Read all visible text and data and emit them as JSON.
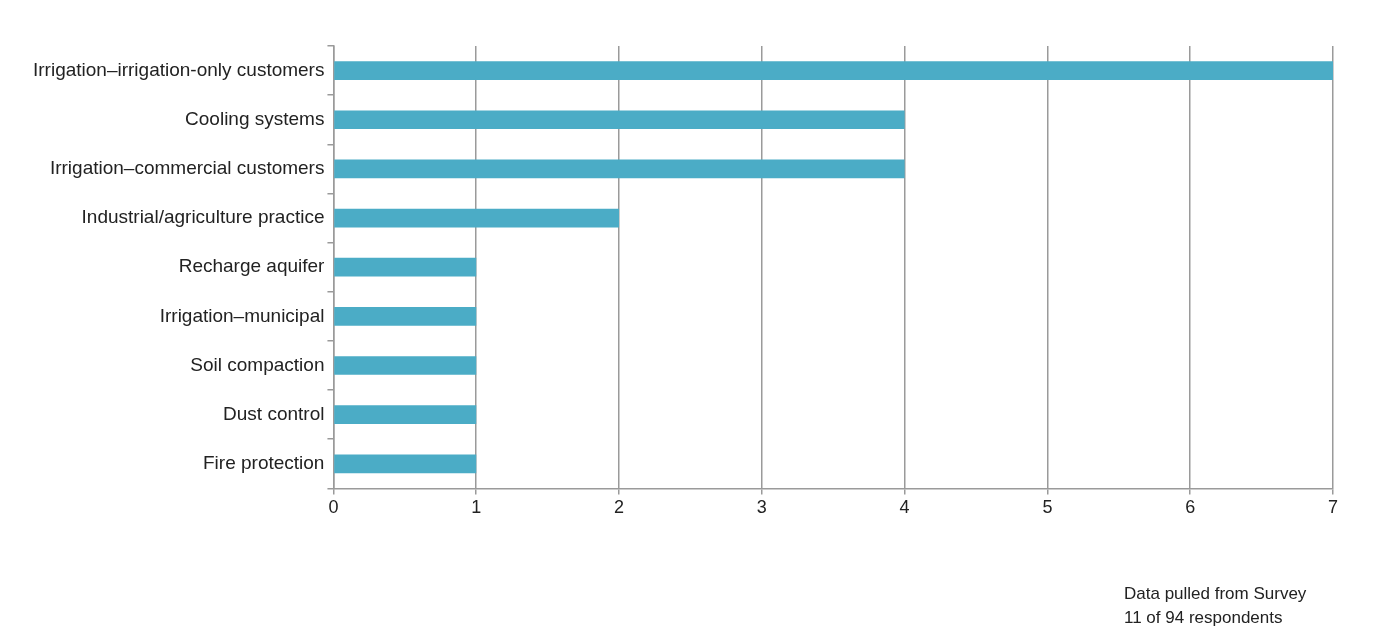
{
  "chart_data": {
    "type": "bar",
    "orientation": "horizontal",
    "categories": [
      "Irrigation–irrigation-only customers",
      "Cooling systems",
      "Irrigation–commercial customers",
      "Industrial/agriculture practice",
      "Recharge aquifer",
      "Irrigation–municipal",
      "Soil compaction",
      "Dust control",
      "Fire protection"
    ],
    "values": [
      7,
      4,
      4,
      2,
      1,
      1,
      1,
      1,
      1
    ],
    "color": "#4bacc6",
    "xlim": [
      0,
      7
    ],
    "xticks": [
      0,
      1,
      2,
      3,
      4,
      5,
      6,
      7
    ],
    "grid": "x",
    "legend": false,
    "annotations": [
      "Data pulled from Survey",
      "11 of 94 respondents"
    ]
  }
}
